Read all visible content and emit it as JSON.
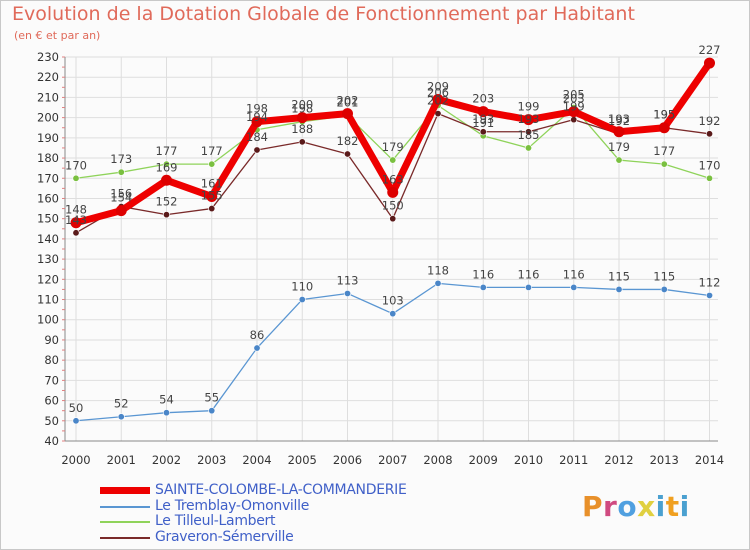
{
  "title": "Evolution de la Dotation Globale de Fonctionnement par Habitant",
  "subtitle": "(en € et par an)",
  "logo": {
    "text": "Proxiti",
    "letter_colors": [
      "#e8902a",
      "#d04a80",
      "#50a0e0",
      "#e0d040",
      "#4aa0d0",
      "#f0a020",
      "#4aa0d0"
    ]
  },
  "chart_data": {
    "type": "line",
    "categories": [
      "2000",
      "2001",
      "2002",
      "2003",
      "2004",
      "2005",
      "2006",
      "2007",
      "2008",
      "2009",
      "2010",
      "2011",
      "2012",
      "2013",
      "2014"
    ],
    "ylim": [
      40,
      230
    ],
    "yticks": [
      40,
      50,
      60,
      70,
      80,
      90,
      100,
      110,
      120,
      130,
      140,
      150,
      160,
      170,
      180,
      190,
      200,
      210,
      220,
      230
    ],
    "grid": true,
    "legend_position": "bottom-left",
    "series": [
      {
        "name": "Le Tremblay-Omonville",
        "color": "#5a96d2",
        "marker": "#4a86c8",
        "values": [
          50,
          52,
          54,
          55,
          86,
          110,
          113,
          103,
          118,
          116,
          116,
          116,
          115,
          115,
          112
        ]
      },
      {
        "name": "Le Tilleul-Lambert",
        "color": "#8fd35a",
        "marker": "#7ac040",
        "values": [
          170,
          173,
          177,
          177,
          194,
          198,
          201,
          179,
          206,
          191,
          185,
          205,
          179,
          177,
          170
        ]
      },
      {
        "name": "Graveron-Sémerville",
        "color": "#7a2a2a",
        "marker": "#5a1a1a",
        "values": [
          143,
          156,
          152,
          155,
          184,
          188,
          182,
          150,
          202,
          193,
          193,
          199,
          192,
          195,
          192
        ]
      },
      {
        "name": "SAINTE-COLOMBE-LA-COMMANDERIE",
        "color": "#ee0000",
        "marker": "#dd0000",
        "values": [
          148,
          154,
          169,
          161,
          198,
          200,
          202,
          163,
          209,
          203,
          199,
          203,
          193,
          195,
          227
        ]
      }
    ],
    "labels": [
      {
        "series": 0,
        "index": 0,
        "text": "50"
      },
      {
        "series": 0,
        "index": 1,
        "text": "52"
      },
      {
        "series": 0,
        "index": 2,
        "text": "54"
      },
      {
        "series": 0,
        "index": 3,
        "text": "55"
      },
      {
        "series": 0,
        "index": 4,
        "text": "86"
      },
      {
        "series": 0,
        "index": 5,
        "text": "110"
      },
      {
        "series": 0,
        "index": 6,
        "text": "113"
      },
      {
        "series": 0,
        "index": 7,
        "text": "103"
      },
      {
        "series": 0,
        "index": 8,
        "text": "118"
      },
      {
        "series": 0,
        "index": 9,
        "text": "116"
      },
      {
        "series": 0,
        "index": 10,
        "text": "116"
      },
      {
        "series": 0,
        "index": 11,
        "text": "116"
      },
      {
        "series": 0,
        "index": 12,
        "text": "115"
      },
      {
        "series": 0,
        "index": 13,
        "text": "115"
      },
      {
        "series": 0,
        "index": 14,
        "text": "112"
      },
      {
        "series": 1,
        "index": 0,
        "text": "170"
      },
      {
        "series": 1,
        "index": 1,
        "text": "173"
      },
      {
        "series": 1,
        "index": 2,
        "text": "177"
      },
      {
        "series": 1,
        "index": 3,
        "text": "177"
      },
      {
        "series": 1,
        "index": 7,
        "text": "179"
      },
      {
        "series": 1,
        "index": 12,
        "text": "179"
      },
      {
        "series": 1,
        "index": 13,
        "text": "177"
      },
      {
        "series": 1,
        "index": 14,
        "text": "170"
      },
      {
        "series": 1,
        "index": 4,
        "text": "194"
      },
      {
        "series": 1,
        "index": 5,
        "text": "198"
      },
      {
        "series": 1,
        "index": 6,
        "text": "201"
      },
      {
        "series": 1,
        "index": 8,
        "text": "206"
      },
      {
        "series": 1,
        "index": 9,
        "text": "191"
      },
      {
        "series": 1,
        "index": 10,
        "text": "185"
      },
      {
        "series": 1,
        "index": 11,
        "text": "205"
      },
      {
        "series": 2,
        "index": 0,
        "text": "143"
      },
      {
        "series": 2,
        "index": 1,
        "text": "156"
      },
      {
        "series": 2,
        "index": 2,
        "text": "152"
      },
      {
        "series": 2,
        "index": 3,
        "text": "155"
      },
      {
        "series": 2,
        "index": 4,
        "text": "184"
      },
      {
        "series": 2,
        "index": 5,
        "text": "188"
      },
      {
        "series": 2,
        "index": 6,
        "text": "182"
      },
      {
        "series": 2,
        "index": 7,
        "text": "150"
      },
      {
        "series": 2,
        "index": 8,
        "text": "202"
      },
      {
        "series": 2,
        "index": 9,
        "text": "193"
      },
      {
        "series": 2,
        "index": 10,
        "text": "193"
      },
      {
        "series": 2,
        "index": 11,
        "text": "199"
      },
      {
        "series": 2,
        "index": 12,
        "text": "192"
      },
      {
        "series": 2,
        "index": 13,
        "text": "195"
      },
      {
        "series": 2,
        "index": 14,
        "text": "192"
      },
      {
        "series": 3,
        "index": 0,
        "text": "148"
      },
      {
        "series": 3,
        "index": 1,
        "text": "154"
      },
      {
        "series": 3,
        "index": 2,
        "text": "169"
      },
      {
        "series": 3,
        "index": 3,
        "text": "161"
      },
      {
        "series": 3,
        "index": 4,
        "text": "198"
      },
      {
        "series": 3,
        "index": 5,
        "text": "200"
      },
      {
        "series": 3,
        "index": 6,
        "text": "202"
      },
      {
        "series": 3,
        "index": 7,
        "text": "163"
      },
      {
        "series": 3,
        "index": 8,
        "text": "209"
      },
      {
        "series": 3,
        "index": 9,
        "text": "203"
      },
      {
        "series": 3,
        "index": 10,
        "text": "199"
      },
      {
        "series": 3,
        "index": 11,
        "text": "203"
      },
      {
        "series": 3,
        "index": 12,
        "text": "193"
      },
      {
        "series": 3,
        "index": 13,
        "text": "195"
      },
      {
        "series": 3,
        "index": 14,
        "text": "227"
      }
    ],
    "legend": [
      {
        "label": "SAINTE-COLOMBE-LA-COMMANDERIE",
        "color": "#ee0000"
      },
      {
        "label": "Le Tremblay-Omonville",
        "color": "#5a96d2"
      },
      {
        "label": "Le Tilleul-Lambert",
        "color": "#8fd35a"
      },
      {
        "label": "Graveron-Sémerville",
        "color": "#7a2a2a"
      }
    ]
  }
}
